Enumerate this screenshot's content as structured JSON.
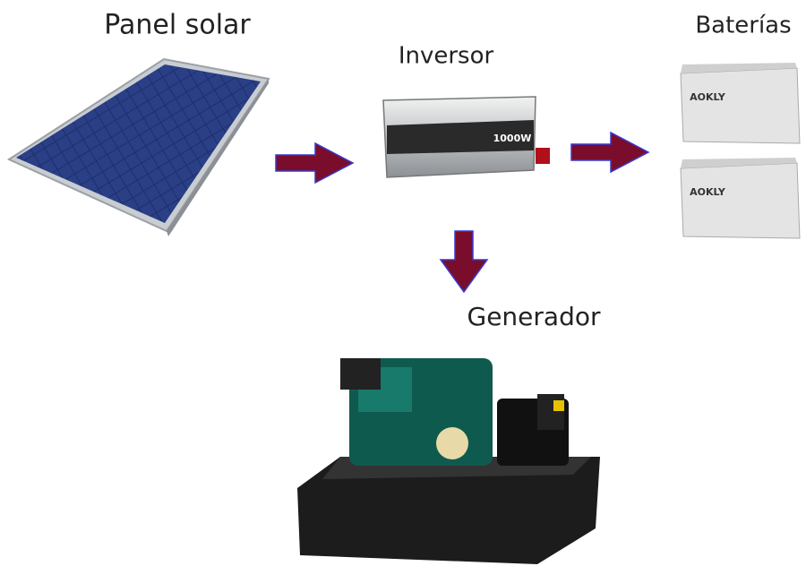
{
  "labels": {
    "solar_panel": "Panel solar",
    "inverter": "Inversor",
    "batteries": "Baterías",
    "generator": "Generador"
  },
  "device_texts": {
    "inverter_rating": "1000W",
    "battery_brand": [
      "AOKLY",
      "AOKLY"
    ]
  }
}
